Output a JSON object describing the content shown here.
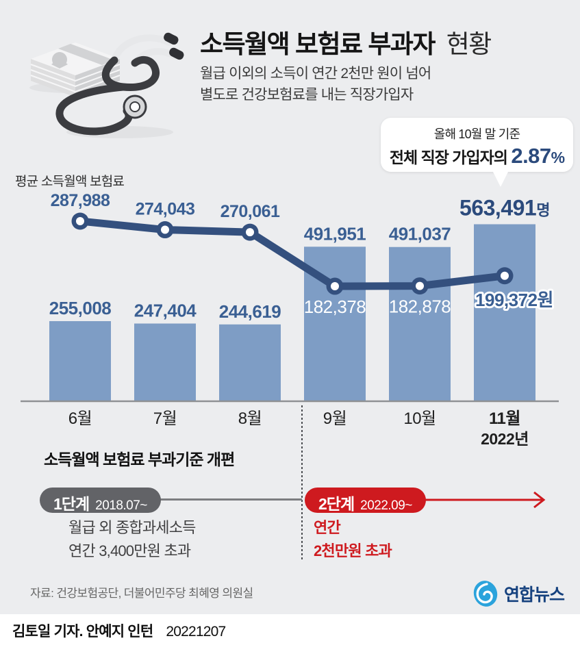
{
  "header": {
    "title_strong": "소득월액 보험료 부과자",
    "title_light": "현황",
    "subtitle_lines": [
      "월급 이외의 소득이 연간 2천만 원이 넘어",
      "별도로 건강보험료를 내는 직장가입자"
    ]
  },
  "callout": {
    "line1": "올해 10월 말 기준",
    "line2_label": "전체 직장 가입자의",
    "percent_value": "2.87",
    "percent_unit": "%"
  },
  "chart_data": {
    "type": "bar+line",
    "categories": [
      "6월",
      "7월",
      "8월",
      "9월",
      "10월",
      "11월"
    ],
    "year_label": "2022년",
    "bar_series": {
      "name": "소득월액 보험료 부과자 수",
      "unit": "명",
      "values": [
        255008,
        247404,
        244619,
        491951,
        491037,
        563491
      ],
      "labels": [
        "255,008",
        "247,404",
        "244,619",
        "491,951",
        "491,037",
        "563,491"
      ],
      "last_label_unit": "명"
    },
    "line_series": {
      "name": "평균 소득월액 보험료",
      "unit": "원",
      "values": [
        287988,
        274043,
        270061,
        182378,
        182878,
        199372
      ],
      "labels": [
        "287,988",
        "274,043",
        "270,061",
        "182,378",
        "182,878",
        "199,372"
      ],
      "last_label_unit": "원"
    },
    "legend": {
      "line_label": "평균 소득월액 보험료"
    },
    "axis": {
      "baseline": true,
      "grid": false
    },
    "colors": {
      "bar": "#7e9dc5",
      "line": "#34507e",
      "value_text": "#3a5f93",
      "emph_text": "#2b4a7c",
      "axis": "#8f9194"
    }
  },
  "reform": {
    "heading": "소득월액 보험료 부과기준 개편",
    "stages": [
      {
        "badge": "1단계",
        "date": "2018.07~",
        "desc_lines": [
          "월급 외 종합과세소득",
          "연간 3,400만원 초과"
        ],
        "color": "#626367"
      },
      {
        "badge": "2단계",
        "date": "2022.09~",
        "desc_lines": [
          "연간",
          "2천만원 초과"
        ],
        "color": "#ce1a1f"
      }
    ]
  },
  "source": "자료: 건강보험공단, 더불어민주당 최혜영 의원실",
  "logo_text": "연합뉴스",
  "footer": {
    "byline": "김토일 기자. 안예지 인턴",
    "date": "20221207"
  }
}
